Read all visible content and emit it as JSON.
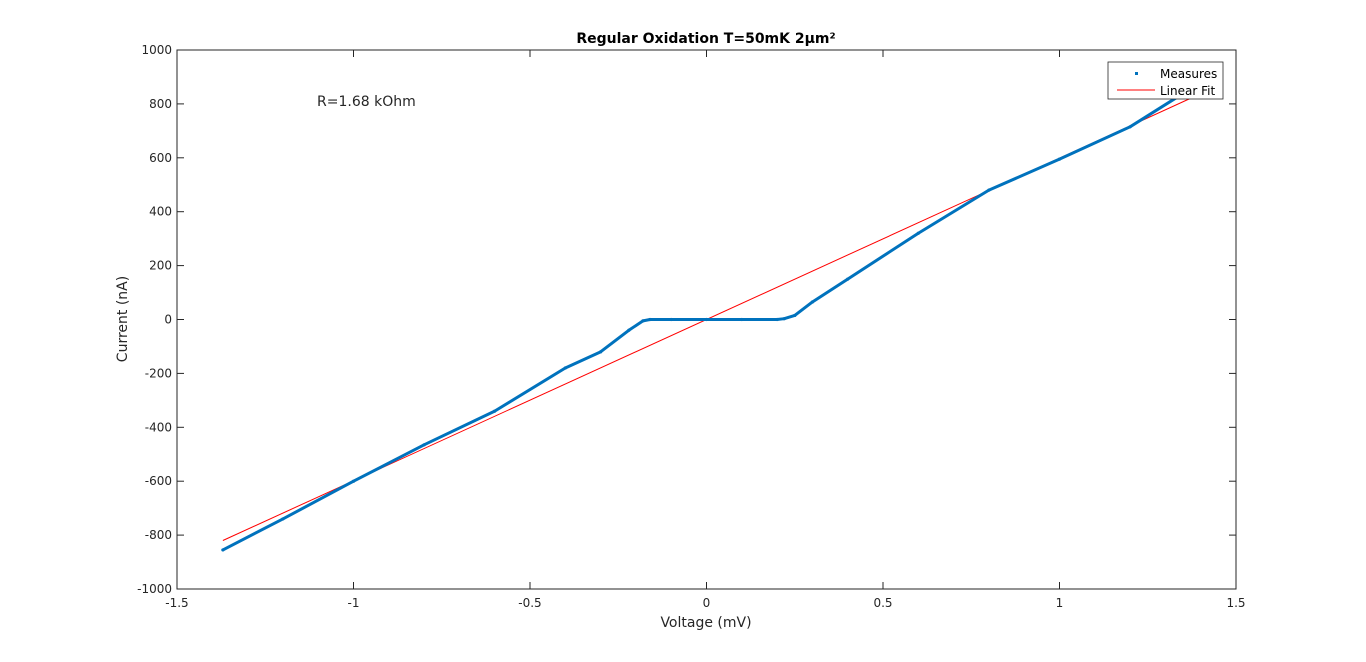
{
  "chart_data": {
    "type": "line",
    "title": "Regular Oxidation T=50mK 2μm²",
    "xlabel": "Voltage (mV)",
    "ylabel": "Current (nA)",
    "xlim": [
      -1.5,
      1.5
    ],
    "ylim": [
      -1000,
      1000
    ],
    "xticks": [
      -1.5,
      -1,
      -0.5,
      0,
      0.5,
      1,
      1.5
    ],
    "xtick_labels": [
      "-1.5",
      "-1",
      "-0.5",
      "0",
      "0.5",
      "1",
      "1.5"
    ],
    "yticks": [
      -1000,
      -800,
      -600,
      -400,
      -200,
      0,
      200,
      400,
      600,
      800,
      1000
    ],
    "ytick_labels": [
      "-1000",
      "-800",
      "-600",
      "-400",
      "-200",
      "0",
      "200",
      "400",
      "600",
      "800",
      "1000"
    ],
    "grid": false,
    "legend_position": "top-right",
    "annotation": "R=1.68 kOhm",
    "series": [
      {
        "name": "Measures",
        "style": "points",
        "color": "#0072BD",
        "x": [
          -1.37,
          -1.2,
          -1.0,
          -0.8,
          -0.6,
          -0.4,
          -0.3,
          -0.22,
          -0.18,
          -0.16,
          -0.1,
          0.0,
          0.1,
          0.2,
          0.22,
          0.25,
          0.3,
          0.4,
          0.6,
          0.8,
          1.0,
          1.2,
          1.37
        ],
        "y": [
          -855,
          -740,
          -600,
          -465,
          -340,
          -180,
          -120,
          -40,
          -5,
          0,
          0,
          0,
          0,
          0,
          3,
          15,
          65,
          150,
          320,
          480,
          595,
          715,
          855
        ]
      },
      {
        "name": "Linear Fit",
        "style": "line",
        "color": "#FF0000",
        "x": [
          -1.37,
          1.37
        ],
        "y": [
          -820,
          820
        ]
      }
    ]
  }
}
